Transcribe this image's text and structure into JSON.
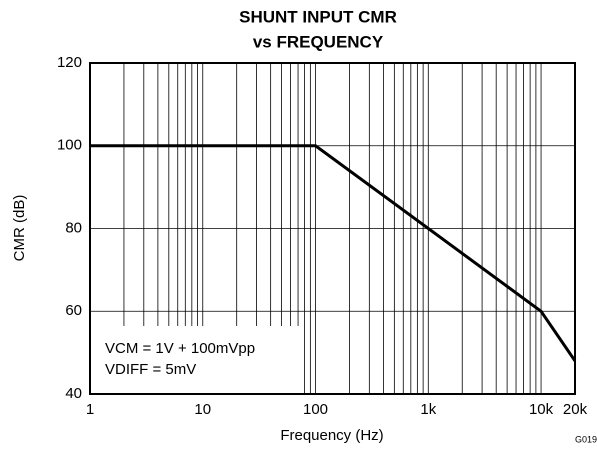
{
  "chart_data": {
    "type": "line",
    "title": "SHUNT INPUT CMR",
    "subtitle": "vs FREQUENCY",
    "x_label": "Frequency (Hz)",
    "y_label": "CMR (dB)",
    "log_x": true,
    "grid": true,
    "annotations": [
      "VCM = 1V + 100mVpp",
      "VDIFF = 5mV",
      "G019"
    ],
    "x": [
      1,
      100,
      10000,
      20000
    ],
    "series": [
      {
        "name": "CMR",
        "color": "#000000",
        "values": [
          100,
          100,
          60,
          48
        ]
      }
    ],
    "xlim": [
      1,
      20000
    ],
    "ylim": [
      40,
      120
    ],
    "xticks": [
      1,
      10,
      100,
      {
        "value": 1000,
        "label": "1k"
      },
      {
        "value": 10000,
        "label": "10k"
      },
      {
        "value": 20000,
        "label": "20k"
      }
    ],
    "x_minor_ticks": [
      2,
      3,
      4,
      5,
      6,
      7,
      8,
      9,
      20,
      30,
      40,
      50,
      60,
      70,
      80,
      90,
      200,
      300,
      400,
      500,
      600,
      700,
      800,
      900,
      2000,
      3000,
      4000,
      5000,
      6000,
      7000,
      8000,
      9000
    ],
    "yticks": [
      40,
      60,
      80,
      100,
      120
    ]
  }
}
